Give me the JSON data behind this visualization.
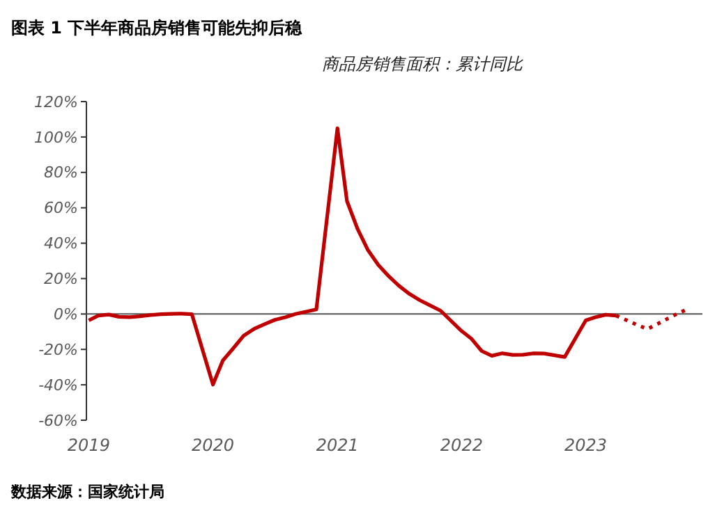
{
  "chart_data": {
    "type": "line",
    "title": "图表 1 下半年商品房销售可能先抑后稳",
    "subtitle": "商品房销售面积：累计同比",
    "annotations": [
      "数据来源：国家统计局"
    ],
    "xlim": [
      "2019-01-25",
      "2024-01-10"
    ],
    "xticks": [
      {
        "value": "2019-02",
        "label": "2019"
      },
      {
        "value": "2020-02",
        "label": "2020"
      },
      {
        "value": "2021-02",
        "label": "2021"
      },
      {
        "value": "2022-02",
        "label": "2022"
      },
      {
        "value": "2023-02",
        "label": "2023"
      }
    ],
    "ylim": [
      -60,
      120
    ],
    "yticks": [
      {
        "value": -60,
        "label": "-60%"
      },
      {
        "value": -40,
        "label": "-40%"
      },
      {
        "value": -20,
        "label": "-20%"
      },
      {
        "value": 0,
        "label": "0%"
      },
      {
        "value": 20,
        "label": "20%"
      },
      {
        "value": 40,
        "label": "40%"
      },
      {
        "value": 60,
        "label": "60%"
      },
      {
        "value": 80,
        "label": "80%"
      },
      {
        "value": 100,
        "label": "100%"
      },
      {
        "value": 120,
        "label": "120%"
      }
    ],
    "marker": "none",
    "series": [
      {
        "color": "#c00000",
        "line_style": "solid",
        "x": [
          "2019-02",
          "2019-03",
          "2019-04",
          "2019-05",
          "2019-06",
          "2019-07",
          "2019-08",
          "2019-09",
          "2019-10",
          "2019-11",
          "2019-12",
          "2020-02",
          "2020-03",
          "2020-04",
          "2020-05",
          "2020-06",
          "2020-07",
          "2020-08",
          "2020-09",
          "2020-10",
          "2020-11",
          "2020-12",
          "2021-02",
          "2021-03",
          "2021-04",
          "2021-05",
          "2021-06",
          "2021-07",
          "2021-08",
          "2021-09",
          "2021-10",
          "2021-11",
          "2021-12",
          "2022-02",
          "2022-03",
          "2022-04",
          "2022-05",
          "2022-06",
          "2022-07",
          "2022-08",
          "2022-09",
          "2022-10",
          "2022-11",
          "2022-12",
          "2023-02",
          "2023-03",
          "2023-04",
          "2023-05"
        ],
        "values": [
          -3.6,
          -0.9,
          -0.3,
          -1.6,
          -1.8,
          -1.3,
          -0.6,
          -0.1,
          0.1,
          0.2,
          -0.1,
          -39.9,
          -26.3,
          -19.3,
          -12.3,
          -8.4,
          -5.8,
          -3.3,
          -1.8,
          0,
          1.3,
          2.6,
          104.9,
          63.8,
          48.1,
          36.3,
          27.7,
          21.5,
          15.9,
          11.3,
          7.8,
          4.8,
          1.9,
          -9.6,
          -13.8,
          -20.9,
          -23.6,
          -22.2,
          -23.1,
          -23,
          -22.2,
          -22.3,
          -23.3,
          -24.3,
          -3.6,
          -1.8,
          -0.4,
          -0.9
        ]
      },
      {
        "color": "#c00000",
        "line_style": "dotted",
        "x": [
          "2023-05",
          "2023-06",
          "2023-07",
          "2023-08",
          "2023-09",
          "2023-10",
          "2023-11",
          "2023-12"
        ],
        "values": [
          -0.9,
          -3.5,
          -6,
          -8.5,
          -5.5,
          -2.5,
          0.5,
          3
        ]
      }
    ]
  }
}
